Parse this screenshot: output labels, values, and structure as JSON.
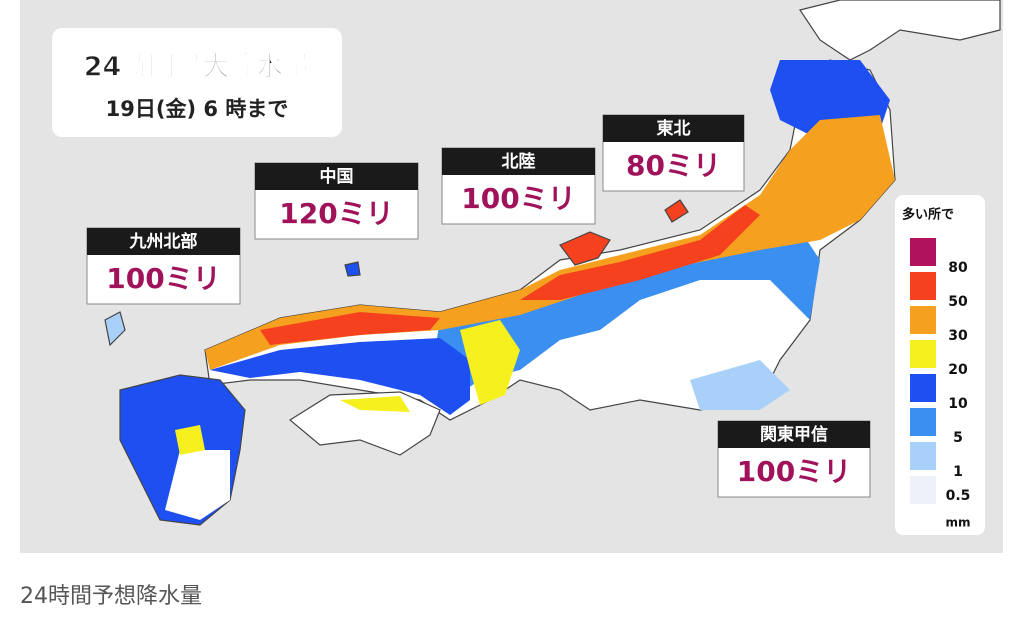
{
  "header": {
    "title": "24時間最大降水量",
    "subtitle": "19日(金) 6 時まで"
  },
  "regions": [
    {
      "name": "九州北部",
      "amount": "100ミリ"
    },
    {
      "name": "中国",
      "amount": "120ミリ"
    },
    {
      "name": "北陸",
      "amount": "100ミリ"
    },
    {
      "name": "東北",
      "amount": "80ミリ"
    },
    {
      "name": "関東甲信",
      "amount": "100ミリ"
    }
  ],
  "legend": {
    "title": "多い所で",
    "unit": "mm",
    "items": [
      {
        "label": "80",
        "color": "#b0125e"
      },
      {
        "label": "50",
        "color": "#f5411e"
      },
      {
        "label": "30",
        "color": "#f5a01e"
      },
      {
        "label": "20",
        "color": "#f5f01e"
      },
      {
        "label": "10",
        "color": "#1e4ff0"
      },
      {
        "label": "5",
        "color": "#3a8ff0"
      },
      {
        "label": "1",
        "color": "#a8d0f8"
      },
      {
        "label": "0.5",
        "color": "#eef0fa"
      }
    ]
  },
  "caption": "24時間予想降水量"
}
